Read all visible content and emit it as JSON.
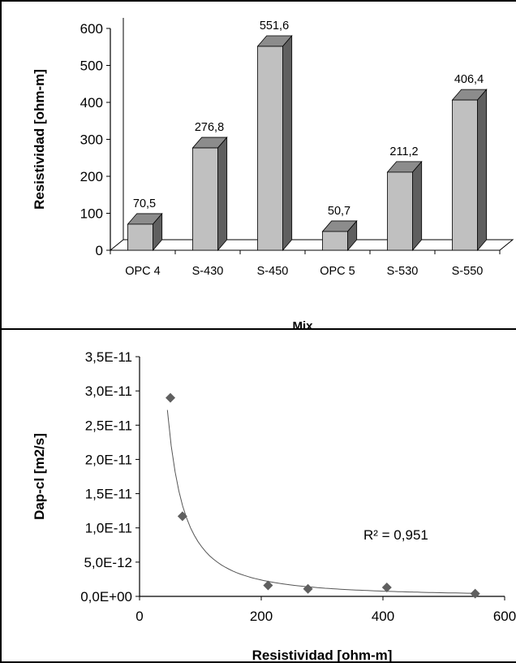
{
  "chart_data": [
    {
      "type": "bar",
      "style": "3d-column",
      "categories": [
        "OPC 4",
        "S-430",
        "S-450",
        "OPC 5",
        "S-530",
        "S-550"
      ],
      "values": [
        70.5,
        276.8,
        551.6,
        50.7,
        211.2,
        406.4
      ],
      "value_labels": [
        "70,5",
        "276,8",
        "551,6",
        "50,7",
        "211,2",
        "406,4"
      ],
      "ylabel": "Resistividad [ohm-m]",
      "xlabel": "Mix",
      "ylim": [
        0,
        600
      ],
      "yticks": [
        0,
        100,
        200,
        300,
        400,
        500,
        600
      ],
      "ytick_labels": [
        "0",
        "100",
        "200",
        "300",
        "400",
        "500",
        "600"
      ],
      "grid": false,
      "colors": {
        "bar_front": "#c0c0c0",
        "bar_side": "#5f5f5f",
        "bar_top": "#8c8c8c"
      }
    },
    {
      "type": "scatter",
      "points": [
        {
          "x": 50.7,
          "y": 2.9e-11
        },
        {
          "x": 70.5,
          "y": 1.17e-11
        },
        {
          "x": 211.2,
          "y": 1.6e-12
        },
        {
          "x": 276.8,
          "y": 1.1e-12
        },
        {
          "x": 406.4,
          "y": 1.3e-12
        },
        {
          "x": 551.6,
          "y": 4e-13
        }
      ],
      "trendline": {
        "type": "power",
        "r2_label": "R² = 0,951"
      },
      "ylabel": "Dap-cl [m2/s]",
      "xlabel": "Resistividad [ohm-m]",
      "xlim": [
        0,
        600
      ],
      "ylim": [
        0,
        3.5e-11
      ],
      "xticks": [
        0,
        200,
        400,
        600
      ],
      "xtick_labels": [
        "0",
        "200",
        "400",
        "600"
      ],
      "yticks": [
        0,
        5e-12,
        1e-11,
        1.5e-11,
        2e-11,
        2.5e-11,
        3e-11,
        3.5e-11
      ],
      "ytick_labels": [
        "0,0E+00",
        "5,0E-12",
        "1,0E-11",
        "1,5E-11",
        "2,0E-11",
        "2,5E-11",
        "3,0E-11",
        "3,5E-11"
      ],
      "grid": false,
      "colors": {
        "marker": "#5f5f5f",
        "trendline": "#555555"
      }
    }
  ]
}
